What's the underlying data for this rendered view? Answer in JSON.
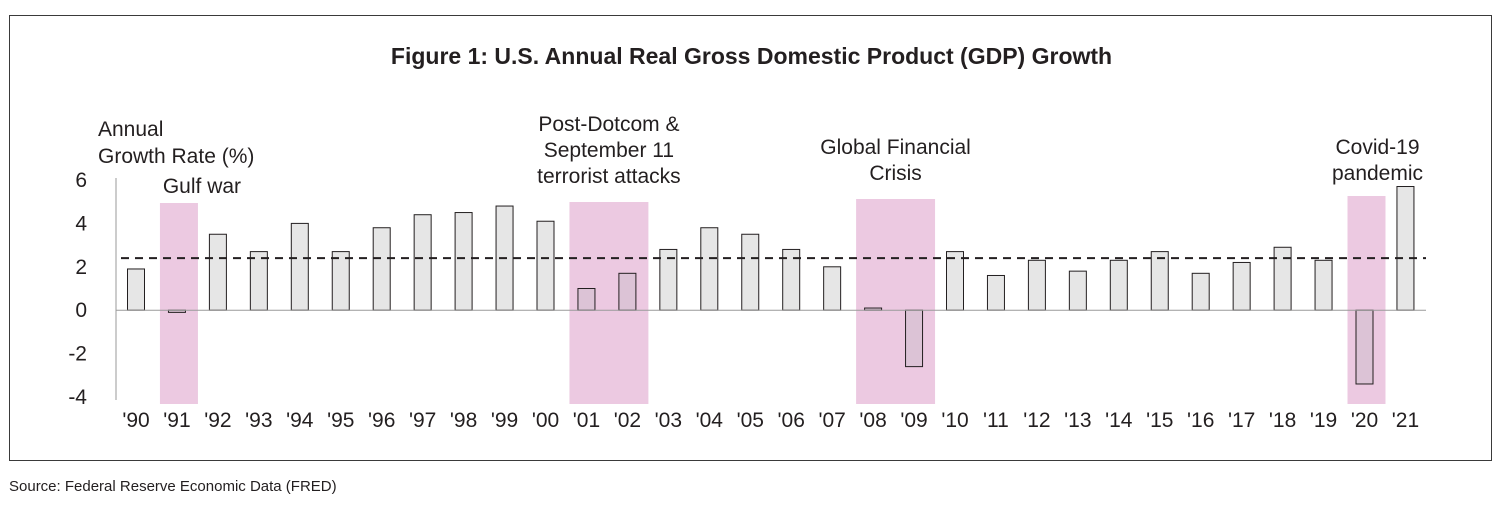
{
  "chart_data": {
    "type": "bar",
    "title": "Figure 1: U.S. Annual Real Gross Domestic Product (GDP) Growth",
    "ylabel_line1": "Annual",
    "ylabel_line2": "Growth Rate (%)",
    "xlabel": "",
    "categories": [
      "'90",
      "'91",
      "'92",
      "'93",
      "'94",
      "'95",
      "'96",
      "'97",
      "'98",
      "'99",
      "'00",
      "'01",
      "'02",
      "'03",
      "'04",
      "'05",
      "'06",
      "'07",
      "'08",
      "'09",
      "'10",
      "'11",
      "'12",
      "'13",
      "'14",
      "'15",
      "'16",
      "'17",
      "'18",
      "'19",
      "'20",
      "'21"
    ],
    "values": [
      1.9,
      -0.1,
      3.5,
      2.7,
      4.0,
      2.7,
      3.8,
      4.4,
      4.5,
      4.8,
      4.1,
      1.0,
      1.7,
      2.8,
      3.8,
      3.5,
      2.8,
      2.0,
      0.1,
      -2.6,
      2.7,
      1.6,
      2.3,
      1.8,
      2.3,
      2.7,
      1.7,
      2.2,
      2.9,
      2.3,
      -3.4,
      5.7
    ],
    "yticks": [
      "6",
      "4",
      "2",
      "0",
      "-2",
      "-4"
    ],
    "ytick_values": [
      6,
      4,
      2,
      0,
      -2,
      -4
    ],
    "ylim": [
      -4,
      6
    ],
    "average_line": 2.4,
    "shaded_periods": [
      {
        "from": "'91",
        "to": "'91",
        "label_lines": [
          "Gulf war"
        ]
      },
      {
        "from": "'01",
        "to": "'02",
        "label_lines": [
          "Post-Dotcom &",
          "September 11",
          "terrorist attacks"
        ]
      },
      {
        "from": "'08",
        "to": "'09",
        "label_lines": [
          "Global Financial",
          "Crisis"
        ]
      },
      {
        "from": "'20",
        "to": "'20",
        "label_lines": [
          "Covid-19",
          "pandemic"
        ]
      }
    ],
    "grid": false,
    "colors": {
      "bar_fill": "#e6e6e6",
      "bar_fill_in_shade": "#dcc3d6",
      "bar_stroke": "#231f20",
      "shade": "#ecc9e1",
      "axis": "#9a9a9a",
      "average_line": "#231f20"
    }
  },
  "source": "Source: Federal Reserve Economic Data (FRED)"
}
